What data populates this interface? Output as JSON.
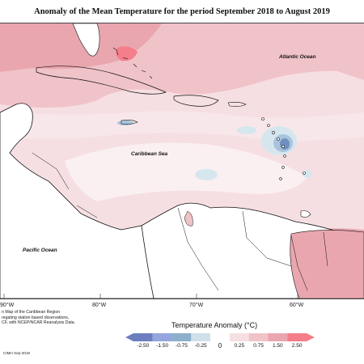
{
  "map": {
    "title": "Anomaly of the Mean Temperature for the period September 2018 to August 2019",
    "labels": {
      "atlantic": "Atlantic Ocean",
      "caribbean": "Caribbean Sea",
      "pacific": "Pacific Ocean"
    },
    "longitude_ticks": [
      "90°W",
      "80°W",
      "70°W",
      "60°W"
    ],
    "credit_lines": [
      "n Map of the Caribbean Region",
      "regating station based observations,",
      "CF, with NCEP/NCAR Reanalysis Data."
    ],
    "credit_footer": "CIMH Sep-2019",
    "colors": {
      "land": "#ffffff",
      "coast": "#111111",
      "anom_0_25": "#f6dfe2",
      "anom_025_075": "#f0c3c9",
      "anom_075_150": "#e9a6ae",
      "anom_150_250": "#f47e8a",
      "neg_0_25": "#d6e6ef",
      "neg_025_075": "#a8c4dc",
      "neg_075_150": "#6f8fbe"
    }
  },
  "legend": {
    "title": "Temperature Anomaly (°C)",
    "bins": [
      {
        "label": "-2.50",
        "color": "#6c7ec0"
      },
      {
        "label": "-1.50",
        "color": "#94a6dd"
      },
      {
        "label": "-0.75",
        "color": "#8cb0cc"
      },
      {
        "label": "-0.25",
        "color": "#cfe0ea"
      },
      {
        "label": "0",
        "color": "#ffffff"
      },
      {
        "label": "0.25",
        "color": "#f6dfe2"
      },
      {
        "label": "0.75",
        "color": "#f0c3c9"
      },
      {
        "label": "1.50",
        "color": "#e9a6ae"
      },
      {
        "label": "2.50",
        "color": "#f47e8a"
      }
    ]
  }
}
